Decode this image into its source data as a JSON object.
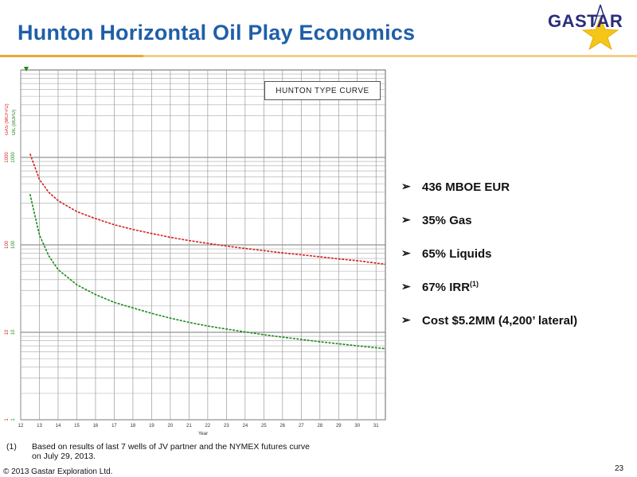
{
  "header": {
    "title": "Hunton Horizontal Oil Play Economics",
    "logo_text": "GASTAR"
  },
  "colors": {
    "title": "#1f5fa8",
    "rule": "#e8a93a",
    "gas": "#d42020",
    "oil": "#1a8a1a",
    "logo_text": "#2a2d7c",
    "logo_star": "#f5c518"
  },
  "chart_data": {
    "type": "line",
    "title": "HUNTON TYPE CURVE",
    "xlabel": "Year",
    "ylabel_gas": "GAS (MCFPD)",
    "ylabel_oil": "OIL (BOPD)",
    "y_scale": "log",
    "ylim": [
      1,
      10000
    ],
    "xlim": [
      12,
      31.5
    ],
    "x_ticks": [
      "12",
      "13",
      "14",
      "15",
      "16",
      "17",
      "18",
      "19",
      "20",
      "21",
      "22",
      "23",
      "24",
      "25",
      "26",
      "27",
      "28",
      "29",
      "30",
      "31"
    ],
    "y_ticks": [
      "1",
      "10",
      "100",
      "1000"
    ],
    "y_ticks_oil": [
      "1",
      "10",
      "100",
      "1000"
    ],
    "grid": true,
    "series": [
      {
        "name": "GAS (MCFPD)",
        "x": [
          12.5,
          13,
          13.5,
          14,
          15,
          16,
          17,
          18,
          19,
          20,
          21,
          22,
          23,
          24,
          25,
          26,
          27,
          28,
          29,
          30,
          31.5
        ],
        "values": [
          1100,
          560,
          400,
          320,
          240,
          200,
          170,
          150,
          135,
          122,
          112,
          104,
          97,
          91,
          86,
          81,
          77,
          73,
          69,
          66,
          60
        ]
      },
      {
        "name": "OIL (BOPD)",
        "x": [
          12.5,
          13,
          13.5,
          14,
          15,
          16,
          17,
          18,
          19,
          20,
          21,
          22,
          23,
          24,
          25,
          26,
          27,
          28,
          29,
          30,
          31.5
        ],
        "values": [
          380,
          130,
          75,
          52,
          35,
          27,
          22,
          19,
          16.5,
          14.5,
          13,
          11.8,
          10.9,
          10.1,
          9.4,
          8.8,
          8.3,
          7.8,
          7.4,
          7.0,
          6.5
        ]
      }
    ]
  },
  "bullets": [
    {
      "marker": "➢",
      "text": "436 MBOE EUR",
      "sup": ""
    },
    {
      "marker": "➢",
      "text": "35% Gas",
      "sup": ""
    },
    {
      "marker": "➢",
      "text": "65% Liquids",
      "sup": ""
    },
    {
      "marker": "➢",
      "text": "67% IRR",
      "sup": "(1)"
    },
    {
      "marker": "➢",
      "text": "Cost $5.2MM (4,200’ lateral)",
      "sup": ""
    }
  ],
  "footnote": {
    "num": "(1)",
    "text": "Based on results of last 7 wells of JV partner and the NYMEX futures curve on July 29, 2013."
  },
  "footer": {
    "copyright": "© 2013 Gastar Exploration Ltd.",
    "page": "23"
  }
}
